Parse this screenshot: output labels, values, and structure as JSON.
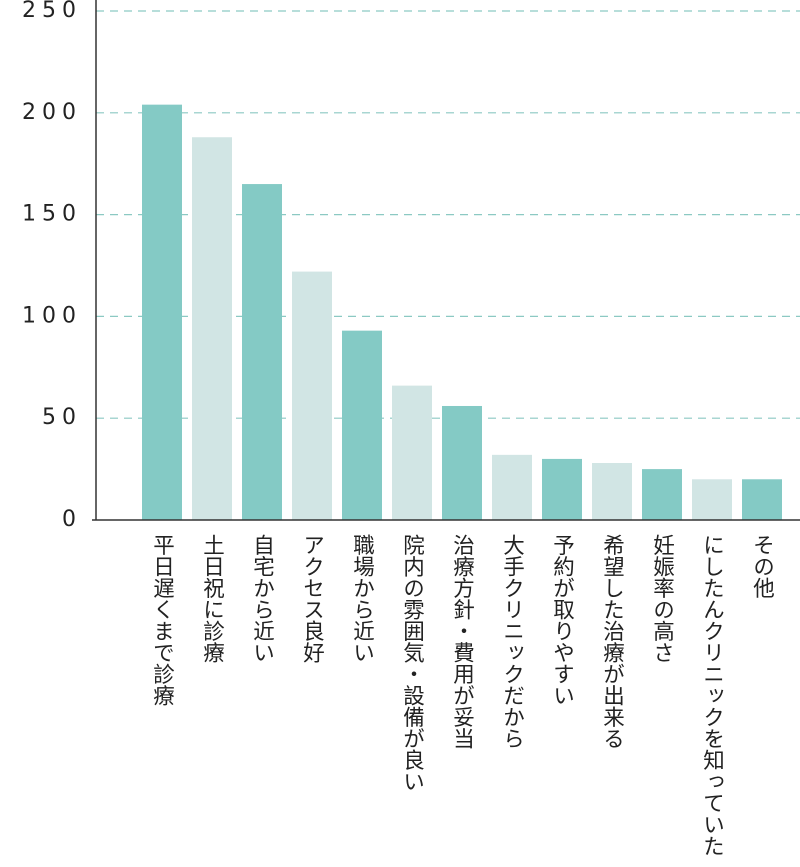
{
  "chart_data": {
    "type": "bar",
    "categories": [
      "平日遅くまで診療",
      "土日祝に診療",
      "自宅から近い",
      "アクセス良好",
      "職場から近い",
      "院内の雰囲気・設備が良い",
      "治療方針・費用が妥当",
      "大手クリニックだから",
      "予約が取りやすい",
      "希望した治療が出来る",
      "妊娠率の高さ",
      "にしたんクリニックを知っていた",
      "その他"
    ],
    "values": [
      204,
      188,
      165,
      122,
      93,
      66,
      56,
      32,
      30,
      28,
      25,
      20,
      20
    ],
    "colors": [
      "#84cac5",
      "#d1e5e4",
      "#84cac5",
      "#d1e5e4",
      "#84cac5",
      "#d1e5e4",
      "#84cac5",
      "#d1e5e4",
      "#84cac5",
      "#d1e5e4",
      "#84cac5",
      "#d1e5e4",
      "#84cac5"
    ],
    "ylim": [
      0,
      250
    ],
    "yticks": [
      0,
      50,
      100,
      150,
      200,
      250
    ],
    "grid": true
  }
}
